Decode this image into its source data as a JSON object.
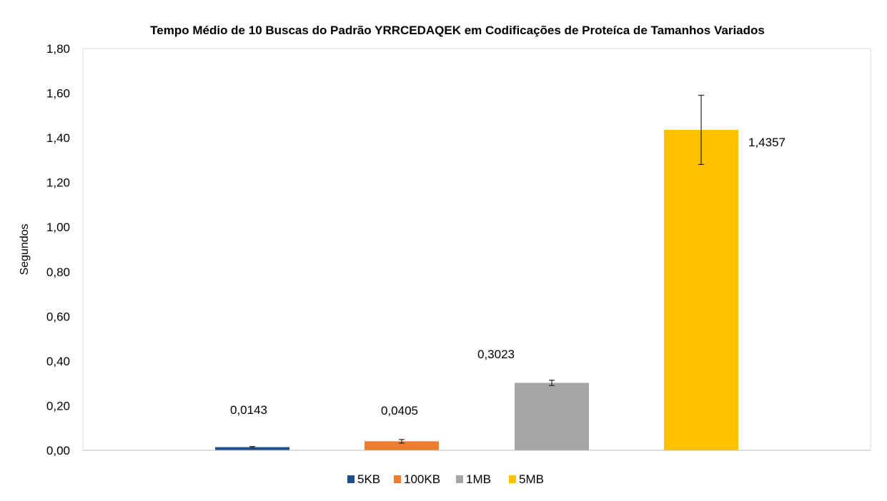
{
  "chart_data": {
    "type": "bar",
    "title": "Tempo Médio de 10 Buscas do Padrão YRRCEDAQEK  em Codificações de Proteíca de Tamanhos Variados",
    "xlabel": "",
    "ylabel": "Segundos",
    "ylim": [
      0,
      1.8
    ],
    "y_ticks": [
      "0,00",
      "0,20",
      "0,40",
      "0,60",
      "0,80",
      "1,00",
      "1,20",
      "1,40",
      "1,60",
      "1,80"
    ],
    "y_tick_values": [
      0,
      0.2,
      0.4,
      0.6,
      0.8,
      1.0,
      1.2,
      1.4,
      1.6,
      1.8
    ],
    "grid": false,
    "legend_position": "bottom",
    "series": [
      {
        "name": "5KB",
        "value": 0.0143,
        "label": "0,0143",
        "error": 0.003,
        "color": "#1F4E8C"
      },
      {
        "name": "100KB",
        "value": 0.0405,
        "label": "0,0405",
        "error": 0.008,
        "color": "#ED7D31"
      },
      {
        "name": "1MB",
        "value": 0.3023,
        "label": "0,3023",
        "error": 0.012,
        "color": "#A5A5A5"
      },
      {
        "name": "5MB",
        "value": 1.4357,
        "label": "1,4357",
        "error": 0.155,
        "color": "#FFC000"
      }
    ]
  }
}
